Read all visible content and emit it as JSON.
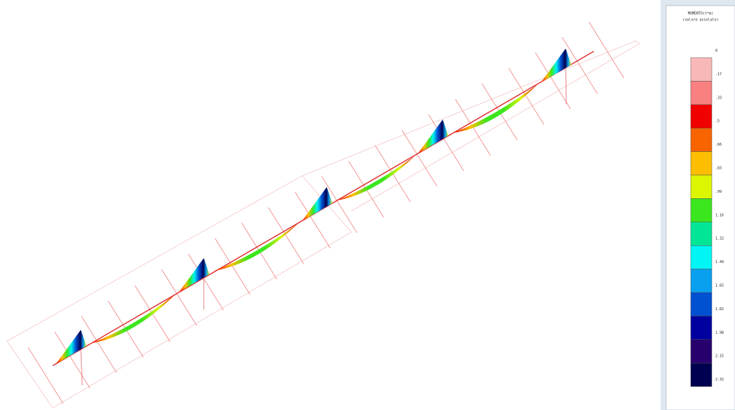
{
  "legend": {
    "title": "MOMENTO(t*m)",
    "subtitle": "(valore assoluto)",
    "labels": [
      "0",
      ".17",
      ".33",
      ".5",
      ".66",
      ".83",
      ".99",
      "1.16",
      "1.32",
      "1.49",
      "1.65",
      "1.82",
      "1.98",
      "2.15",
      "2.32"
    ],
    "colors": [
      "#f9b8b8",
      "#f98080",
      "#f00000",
      "#f86400",
      "#fdbe00",
      "#dcf500",
      "#3ce61e",
      "#00e696",
      "#00f5f5",
      "#0aa0f0",
      "#0050d2",
      "#0000a0",
      "#28006e",
      "#000050"
    ]
  }
}
